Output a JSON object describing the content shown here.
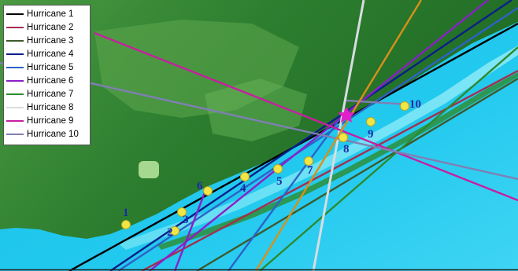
{
  "legend": {
    "items": [
      {
        "label": "Hurricane 1",
        "color": "#000000"
      },
      {
        "label": "Hurricane 2",
        "color": "#a2304e"
      },
      {
        "label": "Hurricane 3",
        "color": "#3e5a2c"
      },
      {
        "label": "Hurricane 4",
        "color": "#0a1f8a"
      },
      {
        "label": "Hurricane 5",
        "color": "#2c63c8"
      },
      {
        "label": "Hurricane 6",
        "color": "#8a1fc8"
      },
      {
        "label": "Hurricane 7",
        "color": "#2e8a2e"
      },
      {
        "label": "Hurricane 8",
        "color": "#d8dde0"
      },
      {
        "label": "Hurricane 9",
        "color": "#c81ea0"
      },
      {
        "label": "Hurricane 10",
        "color": "#7f7fb4"
      }
    ]
  },
  "landfall_points": [
    {
      "label": "1"
    },
    {
      "label": "2"
    },
    {
      "label": "3"
    },
    {
      "label": "4"
    },
    {
      "label": "5"
    },
    {
      "label": "6"
    },
    {
      "label": "7"
    },
    {
      "label": "8"
    },
    {
      "label": "9"
    },
    {
      "label": "10"
    }
  ],
  "colors": {
    "ocean": "#22c6ea",
    "land_dark": "#2a7a2e",
    "land_light": "#7cc46e",
    "marker": "#f2e646",
    "point_label": "#1a2aa8",
    "star": "#e020c8",
    "extra_track_orange": "#d8901a"
  }
}
